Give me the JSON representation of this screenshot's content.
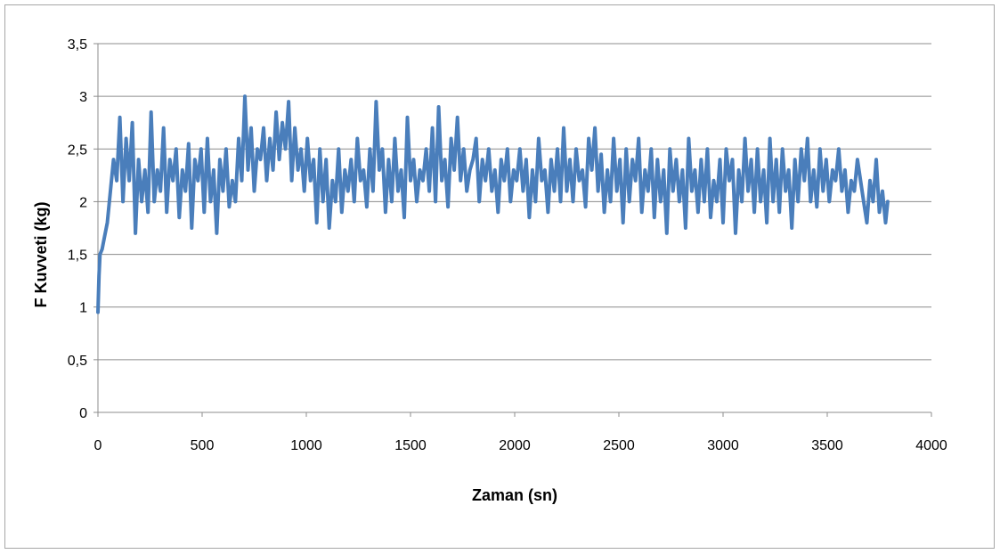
{
  "chart_data": {
    "type": "line",
    "title": "",
    "xlabel": "Zaman (sn)",
    "ylabel": "F Kuvveti (kg)",
    "xlim": [
      0,
      4000
    ],
    "ylim": [
      0,
      3.5
    ],
    "x_ticks": [
      0,
      500,
      1000,
      1500,
      2000,
      2500,
      3000,
      3500,
      4000
    ],
    "x_tick_labels": [
      "0",
      "500",
      "1000",
      "1500",
      "2000",
      "2500",
      "3000",
      "3500",
      "4000"
    ],
    "y_ticks": [
      0,
      0.5,
      1,
      1.5,
      2,
      2.5,
      3,
      3.5
    ],
    "y_tick_labels": [
      "0",
      "0,5",
      "1",
      "1,5",
      "2",
      "2,5",
      "3",
      "3,5"
    ],
    "grid": "horizontal",
    "legend": "none",
    "series": [
      {
        "color": "#4a7ebb",
        "x": [
          0,
          5,
          10,
          20,
          30,
          45,
          60,
          75,
          90,
          105,
          120,
          135,
          150,
          165,
          180,
          195,
          210,
          225,
          240,
          255,
          270,
          285,
          300,
          315,
          330,
          345,
          360,
          375,
          390,
          405,
          420,
          435,
          450,
          465,
          480,
          495,
          510,
          525,
          540,
          555,
          570,
          585,
          600,
          615,
          630,
          645,
          660,
          675,
          690,
          705,
          720,
          735,
          750,
          765,
          780,
          795,
          810,
          825,
          840,
          855,
          870,
          885,
          900,
          915,
          930,
          945,
          960,
          975,
          990,
          1005,
          1020,
          1035,
          1050,
          1065,
          1080,
          1095,
          1110,
          1125,
          1140,
          1155,
          1170,
          1185,
          1200,
          1215,
          1230,
          1245,
          1260,
          1275,
          1290,
          1305,
          1320,
          1335,
          1350,
          1365,
          1380,
          1395,
          1410,
          1425,
          1440,
          1455,
          1470,
          1485,
          1500,
          1515,
          1530,
          1545,
          1560,
          1575,
          1590,
          1605,
          1620,
          1635,
          1650,
          1665,
          1680,
          1695,
          1710,
          1725,
          1740,
          1755,
          1770,
          1785,
          1800,
          1815,
          1830,
          1845,
          1860,
          1875,
          1890,
          1905,
          1920,
          1935,
          1950,
          1965,
          1980,
          1995,
          2010,
          2025,
          2040,
          2055,
          2070,
          2085,
          2100,
          2115,
          2130,
          2145,
          2160,
          2175,
          2190,
          2205,
          2220,
          2235,
          2250,
          2265,
          2280,
          2295,
          2310,
          2325,
          2340,
          2355,
          2370,
          2385,
          2400,
          2415,
          2430,
          2445,
          2460,
          2475,
          2490,
          2505,
          2520,
          2535,
          2550,
          2565,
          2580,
          2595,
          2610,
          2625,
          2640,
          2655,
          2670,
          2685,
          2700,
          2715,
          2730,
          2745,
          2760,
          2775,
          2790,
          2805,
          2820,
          2835,
          2850,
          2865,
          2880,
          2895,
          2910,
          2925,
          2940,
          2955,
          2970,
          2985,
          3000,
          3015,
          3030,
          3045,
          3060,
          3075,
          3090,
          3105,
          3120,
          3135,
          3150,
          3165,
          3180,
          3195,
          3210,
          3225,
          3240,
          3255,
          3270,
          3285,
          3300,
          3315,
          3330,
          3345,
          3360,
          3375,
          3390,
          3405,
          3420,
          3435,
          3450,
          3465,
          3480,
          3495,
          3510,
          3525,
          3540,
          3555,
          3570,
          3585,
          3600,
          3615,
          3630,
          3645,
          3660,
          3675,
          3690,
          3705,
          3720,
          3735,
          3750,
          3765,
          3780,
          3790
        ],
        "y": [
          0.95,
          1.3,
          1.5,
          1.55,
          1.65,
          1.8,
          2.1,
          2.4,
          2.2,
          2.8,
          2.0,
          2.6,
          2.2,
          2.75,
          1.7,
          2.4,
          2.0,
          2.3,
          1.9,
          2.85,
          2.0,
          2.3,
          2.1,
          2.7,
          1.9,
          2.4,
          2.2,
          2.5,
          1.85,
          2.3,
          2.1,
          2.55,
          1.75,
          2.4,
          2.2,
          2.5,
          1.9,
          2.6,
          2.0,
          2.3,
          1.7,
          2.4,
          2.1,
          2.5,
          1.95,
          2.2,
          2.0,
          2.6,
          2.2,
          3.0,
          2.3,
          2.7,
          2.1,
          2.5,
          2.4,
          2.7,
          2.2,
          2.6,
          2.3,
          2.85,
          2.4,
          2.75,
          2.5,
          2.95,
          2.2,
          2.7,
          2.3,
          2.5,
          2.1,
          2.6,
          2.2,
          2.4,
          1.8,
          2.5,
          2.0,
          2.4,
          1.75,
          2.2,
          2.0,
          2.5,
          1.9,
          2.3,
          2.1,
          2.4,
          2.0,
          2.6,
          2.2,
          2.3,
          1.95,
          2.5,
          2.1,
          2.95,
          2.3,
          2.5,
          1.9,
          2.4,
          2.0,
          2.6,
          2.1,
          2.3,
          1.85,
          2.8,
          2.2,
          2.4,
          2.0,
          2.3,
          2.2,
          2.5,
          2.1,
          2.7,
          2.0,
          2.9,
          2.2,
          2.4,
          1.95,
          2.6,
          2.3,
          2.8,
          2.2,
          2.5,
          2.1,
          2.3,
          2.4,
          2.6,
          2.0,
          2.4,
          2.2,
          2.5,
          2.1,
          2.3,
          1.9,
          2.4,
          2.2,
          2.5,
          2.0,
          2.3,
          2.2,
          2.5,
          2.1,
          2.4,
          1.85,
          2.3,
          2.0,
          2.6,
          2.2,
          2.3,
          1.9,
          2.4,
          2.1,
          2.5,
          2.0,
          2.7,
          2.1,
          2.4,
          2.0,
          2.5,
          2.2,
          2.3,
          1.95,
          2.6,
          2.3,
          2.7,
          2.1,
          2.45,
          1.9,
          2.3,
          2.0,
          2.6,
          2.1,
          2.4,
          1.8,
          2.5,
          2.0,
          2.4,
          2.2,
          2.6,
          1.9,
          2.3,
          2.1,
          2.5,
          1.85,
          2.4,
          2.0,
          2.3,
          1.7,
          2.5,
          2.1,
          2.4,
          2.0,
          2.3,
          1.75,
          2.6,
          2.1,
          2.3,
          1.9,
          2.4,
          2.0,
          2.5,
          1.85,
          2.2,
          2.0,
          2.4,
          1.8,
          2.5,
          2.2,
          2.4,
          1.7,
          2.3,
          2.0,
          2.6,
          2.1,
          2.4,
          1.9,
          2.5,
          2.0,
          2.3,
          1.8,
          2.6,
          2.0,
          2.4,
          1.9,
          2.5,
          2.1,
          2.3,
          1.75,
          2.4,
          2.0,
          2.5,
          2.2,
          2.6,
          2.0,
          2.3,
          1.95,
          2.5,
          2.1,
          2.4,
          2.0,
          2.3,
          2.2,
          2.5,
          2.1,
          2.3,
          1.9,
          2.2,
          2.1,
          2.4,
          2.2,
          2.0,
          1.8,
          2.2,
          2.0,
          2.4,
          1.9,
          2.1,
          1.8,
          2.0
        ]
      }
    ]
  }
}
